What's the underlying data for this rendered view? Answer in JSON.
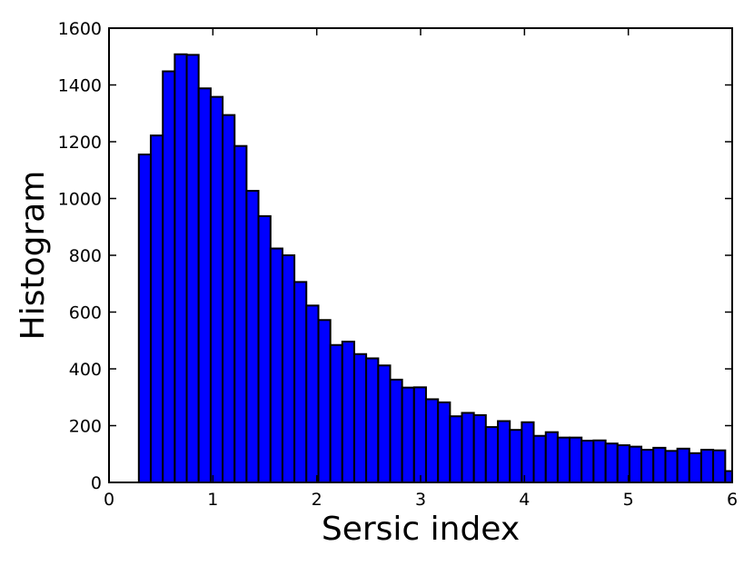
{
  "chart_data": {
    "type": "bar",
    "title": "",
    "xlabel": "Sersic index",
    "ylabel": "Histogram",
    "xlim": [
      0,
      6
    ],
    "ylim": [
      0,
      1600
    ],
    "xticks": [
      0,
      1,
      2,
      3,
      4,
      5,
      6
    ],
    "yticks": [
      0,
      200,
      400,
      600,
      800,
      1000,
      1200,
      1400,
      1600
    ],
    "grid": false,
    "bar_color": "#0000ff",
    "edge_color": "#000000",
    "bins": {
      "edges": [
        0.287,
        0.402,
        0.518,
        0.633,
        0.748,
        0.863,
        0.979,
        1.094,
        1.209,
        1.324,
        1.439,
        1.555,
        1.67,
        1.785,
        1.9,
        2.016,
        2.131,
        2.246,
        2.361,
        2.476,
        2.592,
        2.707,
        2.822,
        2.937,
        3.052,
        3.168,
        3.283,
        3.398,
        3.513,
        3.628,
        3.744,
        3.859,
        3.974,
        4.089,
        4.205,
        4.32,
        4.435,
        4.55,
        4.665,
        4.781,
        4.896,
        5.011,
        5.126,
        5.241,
        5.357,
        5.472,
        5.587,
        5.702,
        5.817,
        5.933,
        6.0
      ],
      "counts": [
        1155,
        1222,
        1448,
        1508,
        1506,
        1388,
        1358,
        1294,
        1185,
        1027,
        938,
        824,
        800,
        706,
        623,
        572,
        484,
        496,
        452,
        437,
        412,
        362,
        334,
        335,
        293,
        282,
        233,
        245,
        237,
        195,
        216,
        185,
        212,
        164,
        177,
        158,
        158,
        147,
        148,
        137,
        131,
        126,
        115,
        122,
        111,
        119,
        103,
        115,
        113,
        40
      ]
    }
  }
}
